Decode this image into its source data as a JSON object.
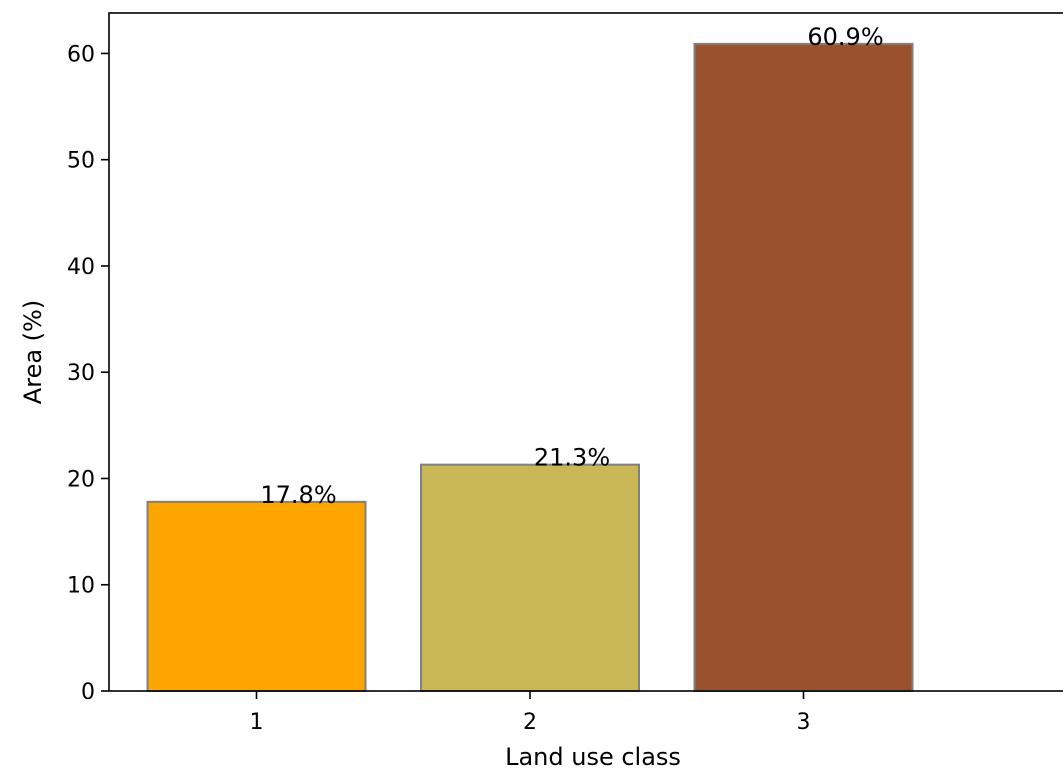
{
  "chart_data": {
    "type": "bar",
    "categories": [
      "1",
      "2",
      "3"
    ],
    "values": [
      17.8,
      21.3,
      60.9
    ],
    "data_labels": [
      "17.8%",
      "21.3%",
      "60.9%"
    ],
    "colors": [
      "#FFA500",
      "#C9B654",
      "#9A522E"
    ],
    "edge_color": "#808080",
    "title": "",
    "xlabel": "Land use class",
    "ylabel": "Area (%)",
    "ylim": [
      0,
      64
    ],
    "yticks": [
      0,
      10,
      20,
      30,
      40,
      50,
      60
    ],
    "grid": false,
    "legend": false
  }
}
